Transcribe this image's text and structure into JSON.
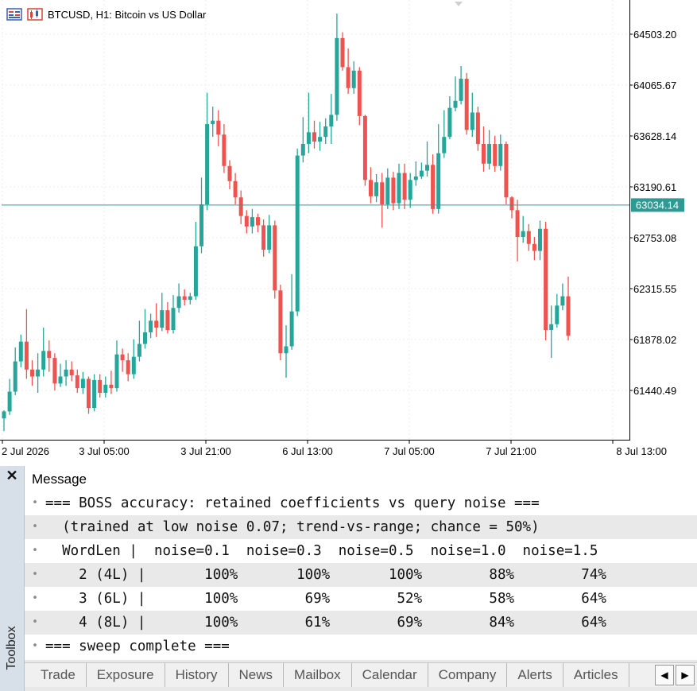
{
  "window": {
    "symbol_caption": "BTCUSD, H1:  Bitcoin vs US Dollar"
  },
  "colors": {
    "bull": "#26a69a",
    "bear": "#ef5350",
    "bid_line": "#2f9a94",
    "grid": "#ececec"
  },
  "chart_data": {
    "type": "candlestick",
    "price_axis_labels": [
      "64503.20",
      "64065.67",
      "63628.14",
      "63190.61",
      "62753.08",
      "62315.55",
      "61878.02",
      "61440.49"
    ],
    "time_axis_labels": [
      "2 Jul 2026",
      "3 Jul 05:00",
      "3 Jul 21:00",
      "6 Jul 13:00",
      "7 Jul 05:00",
      "7 Jul 21:00",
      "8 Jul 13:00"
    ],
    "current_price": "63034.14",
    "ylim": [
      61000,
      64750
    ],
    "candles": [
      [
        61200,
        61260,
        61090,
        61270
      ],
      [
        61260,
        61430,
        61230,
        61540
      ],
      [
        61430,
        61690,
        61400,
        61810
      ],
      [
        61690,
        61860,
        61640,
        61920
      ],
      [
        61860,
        61620,
        61540,
        62140
      ],
      [
        61620,
        61560,
        61480,
        61700
      ],
      [
        61560,
        61620,
        61420,
        61760
      ],
      [
        61620,
        61780,
        61560,
        61980
      ],
      [
        61780,
        61720,
        61600,
        61870
      ],
      [
        61720,
        61500,
        61440,
        61760
      ],
      [
        61500,
        61560,
        61470,
        61670
      ],
      [
        61560,
        61620,
        61480,
        61700
      ],
      [
        61620,
        61570,
        61520,
        61690
      ],
      [
        61570,
        61460,
        61420,
        61620
      ],
      [
        61460,
        61540,
        61410,
        61600
      ],
      [
        61540,
        61290,
        61240,
        61560
      ],
      [
        61290,
        61530,
        61260,
        61580
      ],
      [
        61530,
        61420,
        61380,
        61580
      ],
      [
        61420,
        61490,
        61380,
        61560
      ],
      [
        61490,
        61460,
        61410,
        61610
      ],
      [
        61460,
        61750,
        61430,
        61870
      ],
      [
        61750,
        61700,
        61600,
        61800
      ],
      [
        61700,
        61580,
        61520,
        61760
      ],
      [
        61580,
        61730,
        61540,
        61880
      ],
      [
        61730,
        61840,
        61690,
        62040
      ],
      [
        61840,
        61940,
        61800,
        62140
      ],
      [
        61940,
        62040,
        61890,
        62100
      ],
      [
        62040,
        61980,
        61900,
        62190
      ],
      [
        61980,
        62130,
        61950,
        62280
      ],
      [
        62130,
        61960,
        61930,
        62200
      ],
      [
        61960,
        62150,
        61930,
        62260
      ],
      [
        62150,
        62250,
        62110,
        62360
      ],
      [
        62250,
        62220,
        62170,
        62310
      ],
      [
        62220,
        62250,
        62180,
        62280
      ],
      [
        62250,
        62680,
        62220,
        62890
      ],
      [
        62680,
        63040,
        62620,
        63270
      ],
      [
        63040,
        63730,
        62990,
        64000
      ],
      [
        63730,
        63760,
        63620,
        63880
      ],
      [
        63760,
        63640,
        63540,
        63850
      ],
      [
        63640,
        63370,
        63310,
        63730
      ],
      [
        63370,
        63240,
        63170,
        63420
      ],
      [
        63240,
        63100,
        63040,
        63310
      ],
      [
        63100,
        62940,
        62870,
        63160
      ],
      [
        62940,
        62850,
        62790,
        62990
      ],
      [
        62850,
        62930,
        62790,
        63000
      ],
      [
        62930,
        62860,
        62800,
        62960
      ],
      [
        62860,
        62650,
        62590,
        62910
      ],
      [
        62650,
        62860,
        62620,
        62950
      ],
      [
        62860,
        62300,
        62230,
        62900
      ],
      [
        62300,
        61760,
        61700,
        62350
      ],
      [
        61760,
        61820,
        61550,
        62000
      ],
      [
        61820,
        62120,
        61790,
        62440
      ],
      [
        62120,
        63460,
        62080,
        63520
      ],
      [
        63460,
        63560,
        63400,
        63790
      ],
      [
        63560,
        63660,
        63480,
        64000
      ],
      [
        63660,
        63580,
        63520,
        63760
      ],
      [
        63580,
        63620,
        63500,
        63750
      ],
      [
        63620,
        63710,
        63560,
        63780
      ],
      [
        63710,
        63810,
        63560,
        63990
      ],
      [
        63810,
        64470,
        63760,
        64680
      ],
      [
        64470,
        64220,
        64190,
        64520
      ],
      [
        64220,
        64040,
        63990,
        64380
      ],
      [
        64040,
        64190,
        63990,
        64270
      ],
      [
        64190,
        63800,
        63720,
        64220
      ],
      [
        63800,
        63250,
        63200,
        63810
      ],
      [
        63250,
        63110,
        63050,
        63360
      ],
      [
        63110,
        63230,
        63060,
        63300
      ],
      [
        63230,
        63040,
        62840,
        63310
      ],
      [
        63040,
        63270,
        63000,
        63350
      ],
      [
        63270,
        63050,
        62990,
        63320
      ],
      [
        63050,
        63310,
        63000,
        63390
      ],
      [
        63310,
        63080,
        63000,
        63390
      ],
      [
        63080,
        63250,
        63010,
        63310
      ],
      [
        63250,
        63280,
        63200,
        63410
      ],
      [
        63280,
        63330,
        63260,
        63400
      ],
      [
        63330,
        63380,
        63280,
        63580
      ],
      [
        63380,
        63000,
        62960,
        63470
      ],
      [
        63000,
        63480,
        62960,
        63730
      ],
      [
        63480,
        63620,
        63440,
        63850
      ],
      [
        63620,
        63870,
        63600,
        63970
      ],
      [
        63870,
        63930,
        63840,
        64140
      ],
      [
        63930,
        64120,
        63900,
        64230
      ],
      [
        64120,
        63680,
        63640,
        64170
      ],
      [
        63680,
        63830,
        63620,
        64000
      ],
      [
        63830,
        63560,
        63500,
        63880
      ],
      [
        63560,
        63390,
        63320,
        63710
      ],
      [
        63390,
        63560,
        63340,
        63680
      ],
      [
        63560,
        63370,
        63320,
        63630
      ],
      [
        63370,
        63560,
        63330,
        63640
      ],
      [
        63560,
        63100,
        63040,
        63580
      ],
      [
        63100,
        62990,
        62920,
        63110
      ],
      [
        62990,
        62760,
        62550,
        63080
      ],
      [
        62760,
        62810,
        62710,
        62940
      ],
      [
        62810,
        62700,
        62640,
        62870
      ],
      [
        62700,
        62640,
        62560,
        62760
      ],
      [
        62640,
        62830,
        62560,
        62900
      ],
      [
        62830,
        61960,
        61870,
        62890
      ],
      [
        61960,
        62010,
        61720,
        62170
      ],
      [
        62010,
        62170,
        61980,
        62270
      ],
      [
        62170,
        62250,
        62130,
        62360
      ],
      [
        62250,
        61910,
        61870,
        62420
      ]
    ]
  },
  "toolbox": {
    "close_glyph": "✕",
    "vertical_label": "Toolbox",
    "column_header": "Message",
    "rows": [
      "=== BOSS accuracy: retained coefficients vs query noise ===",
      "  (trained at low noise 0.07; trend-vs-range; chance = 50%)",
      "  WordLen |  noise=0.1  noise=0.3  noise=0.5  noise=1.0  noise=1.5",
      "    2 (4L) |       100%       100%       100%        88%        74%",
      "    3 (6L) |       100%        69%        52%        58%        64%",
      "    4 (8L) |       100%        61%        69%        84%        64%",
      "=== sweep complete ==="
    ],
    "row_bullet": "•",
    "tabs": [
      "Trade",
      "Exposure",
      "History",
      "News",
      "Mailbox",
      "Calendar",
      "Company",
      "Alerts",
      "Articles"
    ],
    "scroll_left_glyph": "◀",
    "scroll_right_glyph": "▶"
  }
}
